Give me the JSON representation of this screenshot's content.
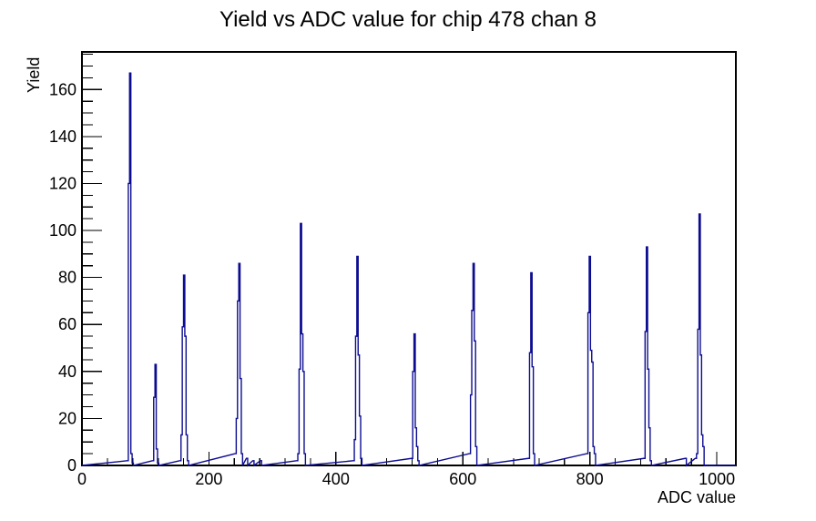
{
  "chart_data": {
    "type": "bar",
    "subtype": "step-histogram",
    "title": "Yield vs ADC value for chip 478 chan 8",
    "xlabel": "ADC value",
    "ylabel": "Yield",
    "xlim": [
      0,
      1030
    ],
    "ylim": [
      0,
      176
    ],
    "x_major_ticks": [
      0,
      200,
      400,
      600,
      800,
      1000
    ],
    "x_minor_step": 40,
    "y_major_ticks": [
      0,
      20,
      40,
      60,
      80,
      100,
      120,
      140,
      160
    ],
    "y_minor_step": 5,
    "grid": "off",
    "legend": "none",
    "line_color": "#0c0c92",
    "axis_color": "#000000",
    "background_color": "#ffffff",
    "bin_width": 2,
    "peaks": [
      {
        "adc": 76,
        "yield": 167
      },
      {
        "adc": 116,
        "yield": 43
      },
      {
        "adc": 161,
        "yield": 81
      },
      {
        "adc": 248,
        "yield": 86
      },
      {
        "adc": 345,
        "yield": 103
      },
      {
        "adc": 434,
        "yield": 89
      },
      {
        "adc": 524,
        "yield": 56
      },
      {
        "adc": 617,
        "yield": 86
      },
      {
        "adc": 708,
        "yield": 82
      },
      {
        "adc": 800,
        "yield": 89
      },
      {
        "adc": 890,
        "yield": 93
      },
      {
        "adc": 973,
        "yield": 107
      }
    ],
    "bins": [
      [
        71,
        2
      ],
      [
        73,
        120
      ],
      [
        75,
        167
      ],
      [
        77,
        5
      ],
      [
        79,
        1
      ],
      [
        111,
        2
      ],
      [
        113,
        29
      ],
      [
        115,
        43
      ],
      [
        117,
        7
      ],
      [
        119,
        1
      ],
      [
        154,
        2
      ],
      [
        156,
        13
      ],
      [
        158,
        59
      ],
      [
        160,
        81
      ],
      [
        162,
        55
      ],
      [
        164,
        13
      ],
      [
        166,
        2
      ],
      [
        241,
        5
      ],
      [
        243,
        20
      ],
      [
        245,
        70
      ],
      [
        247,
        86
      ],
      [
        249,
        37
      ],
      [
        251,
        5
      ],
      [
        259,
        3
      ],
      [
        269,
        2
      ],
      [
        281,
        2
      ],
      [
        338,
        2
      ],
      [
        340,
        5
      ],
      [
        342,
        41
      ],
      [
        344,
        103
      ],
      [
        346,
        56
      ],
      [
        348,
        40
      ],
      [
        350,
        5
      ],
      [
        427,
        2
      ],
      [
        429,
        11
      ],
      [
        431,
        55
      ],
      [
        433,
        89
      ],
      [
        435,
        47
      ],
      [
        437,
        21
      ],
      [
        439,
        3
      ],
      [
        519,
        3
      ],
      [
        521,
        40
      ],
      [
        523,
        56
      ],
      [
        525,
        16
      ],
      [
        527,
        8
      ],
      [
        529,
        2
      ],
      [
        610,
        5
      ],
      [
        612,
        30
      ],
      [
        614,
        66
      ],
      [
        616,
        86
      ],
      [
        618,
        53
      ],
      [
        620,
        8
      ],
      [
        703,
        3
      ],
      [
        705,
        48
      ],
      [
        707,
        82
      ],
      [
        709,
        42
      ],
      [
        711,
        5
      ],
      [
        795,
        5
      ],
      [
        797,
        65
      ],
      [
        799,
        89
      ],
      [
        801,
        49
      ],
      [
        803,
        44
      ],
      [
        805,
        8
      ],
      [
        807,
        5
      ],
      [
        885,
        3
      ],
      [
        887,
        57
      ],
      [
        889,
        93
      ],
      [
        891,
        41
      ],
      [
        893,
        16
      ],
      [
        895,
        2
      ],
      [
        950,
        3
      ],
      [
        966,
        3
      ],
      [
        968,
        5
      ],
      [
        970,
        58
      ],
      [
        972,
        107
      ],
      [
        974,
        47
      ],
      [
        976,
        13
      ],
      [
        978,
        8
      ]
    ]
  }
}
